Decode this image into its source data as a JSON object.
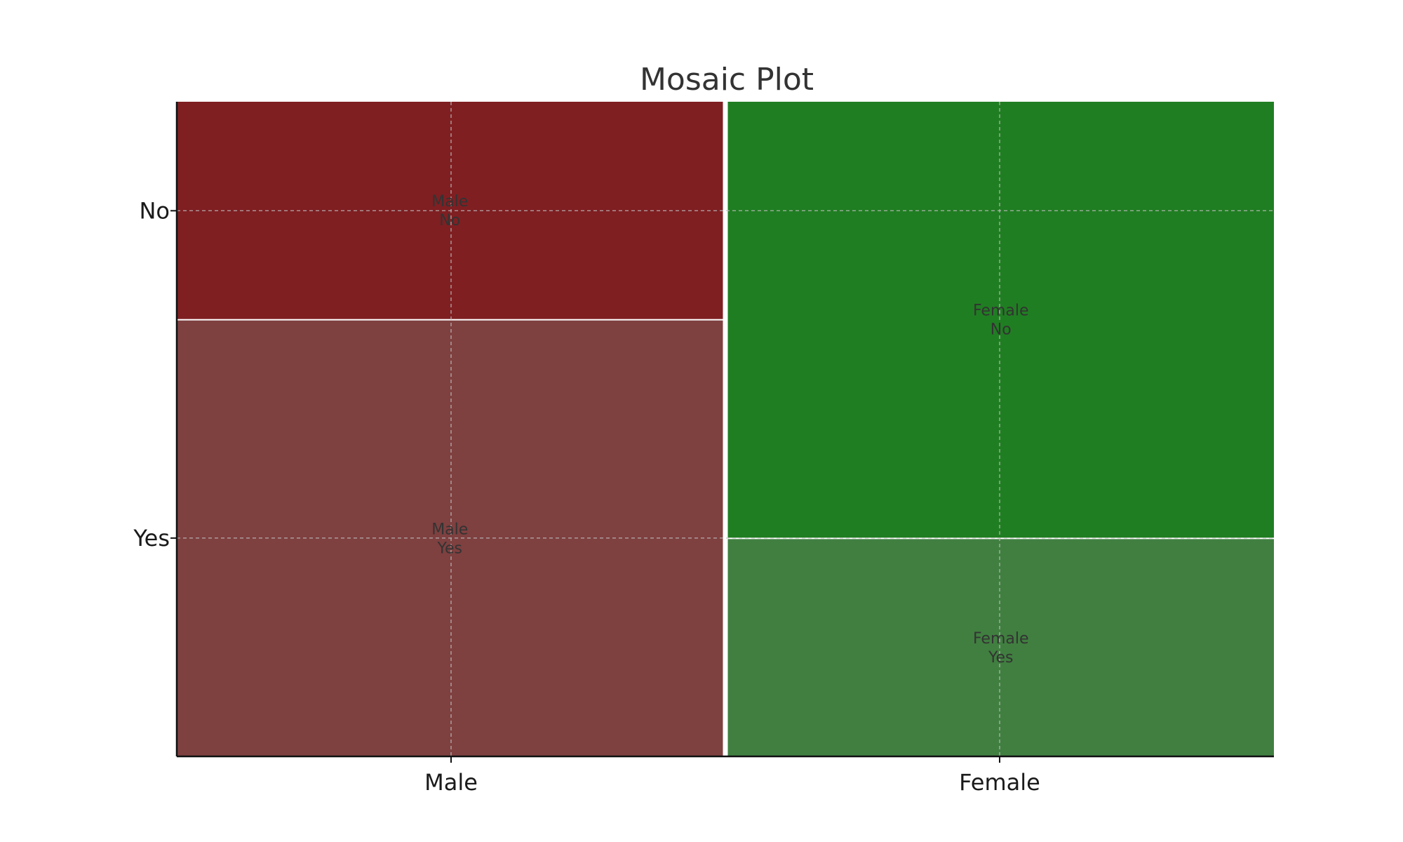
{
  "chart_data": {
    "type": "mosaic",
    "title": "Mosaic Plot",
    "x_categories": [
      "Male",
      "Female"
    ],
    "y_categories": [
      "No",
      "Yes"
    ],
    "column_proportions": [
      0.5,
      0.5
    ],
    "cells": [
      {
        "x": "Male",
        "y": "No",
        "proportion": 0.333,
        "label": [
          "Male",
          "No"
        ],
        "color": "#7f1f22"
      },
      {
        "x": "Male",
        "y": "Yes",
        "proportion": 0.667,
        "label": [
          "Male",
          "Yes"
        ],
        "color": "#7f4040"
      },
      {
        "x": "Female",
        "y": "No",
        "proportion": 0.667,
        "label": [
          "Female",
          "No"
        ],
        "color": "#207e22"
      },
      {
        "x": "Female",
        "y": "Yes",
        "proportion": 0.333,
        "label": [
          "Female",
          "Yes"
        ],
        "color": "#407f40"
      }
    ],
    "x_tick_labels": [
      "Male",
      "Female"
    ],
    "y_tick_labels": [
      "No",
      "Yes"
    ],
    "grid": true,
    "legend": "none"
  }
}
